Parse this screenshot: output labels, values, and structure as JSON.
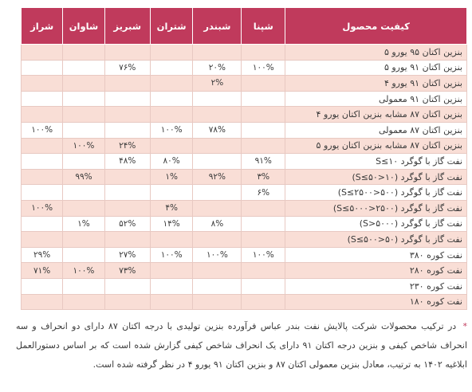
{
  "table": {
    "headers": [
      "کیفیت محصول",
      "شپنا",
      "شبندر",
      "شتران",
      "شبریز",
      "شاوان",
      "شراز"
    ],
    "rows": [
      {
        "label": "بنزین اکتان ۹۵ یورو ۵",
        "values": [
          "",
          "",
          "",
          "",
          "",
          ""
        ]
      },
      {
        "label": "بنزین اکتان ۹۱ یورو ۵",
        "values": [
          "۱۰۰%",
          "۲۰%",
          "",
          "۷۶%",
          "",
          ""
        ]
      },
      {
        "label": "بنزین اکتان ۹۱ یورو ۴",
        "values": [
          "",
          "۲%",
          "",
          "",
          "",
          ""
        ]
      },
      {
        "label": "بنزین اکتان ۹۱ معمولی",
        "values": [
          "",
          "",
          "",
          "",
          "",
          ""
        ]
      },
      {
        "label": "بنزین اکتان ۸۷ مشابه بنزین اکتان یورو ۴",
        "values": [
          "",
          "",
          "",
          "",
          "",
          ""
        ]
      },
      {
        "label": "بنزین اکتان ۸۷ معمولی",
        "values": [
          "",
          "۷۸%",
          "۱۰۰%",
          "",
          "",
          "۱۰۰%"
        ]
      },
      {
        "label": "بنزین اکتان ۸۷ مشابه بنزین اکتان یورو ۵",
        "values": [
          "",
          "",
          "",
          "۲۴%",
          "۱۰۰%",
          ""
        ]
      },
      {
        "label": "نفت گاز با گوگرد S≤۱۰",
        "values": [
          "۹۱%",
          "",
          "۸۰%",
          "۴۸%",
          "",
          ""
        ]
      },
      {
        "label": "نفت گاز با گوگرد (۱۰<S≤۵۰)",
        "values": [
          "۳%",
          "۹۲%",
          "۱%",
          "",
          "۹۹%",
          ""
        ]
      },
      {
        "label": "نفت گاز با گوگرد (۵۰۰<S≤۲۵۰۰)",
        "values": [
          "۶%",
          "",
          "",
          "",
          "",
          ""
        ]
      },
      {
        "label": "نفت گاز با گوگرد (۲۵۰۰<S≤۵۰۰۰)",
        "values": [
          "",
          "",
          "۴%",
          "",
          "",
          "۱۰۰%"
        ]
      },
      {
        "label": "نفت گاز با گوگرد (S>۵۰۰۰)",
        "values": [
          "",
          "۸%",
          "۱۴%",
          "۵۲%",
          "۱%",
          ""
        ]
      },
      {
        "label": "نفت گاز با گوگرد (۵۰<S≤۵۰۰)",
        "values": [
          "",
          "",
          "",
          "",
          "",
          ""
        ]
      },
      {
        "label": "نفت کوره ۳۸۰",
        "values": [
          "۱۰۰%",
          "۱۰۰%",
          "۱۰۰%",
          "۲۷%",
          "",
          "۲۹%"
        ]
      },
      {
        "label": "نفت کوره ۲۸۰",
        "values": [
          "",
          "",
          "",
          "۷۳%",
          "۱۰۰%",
          "۷۱%"
        ]
      },
      {
        "label": "نفت کوره ۲۳۰",
        "values": [
          "",
          "",
          "",
          "",
          "",
          ""
        ]
      },
      {
        "label": "نفت کوره ۱۸۰",
        "values": [
          "",
          "",
          "",
          "",
          "",
          ""
        ]
      }
    ]
  },
  "footnote": {
    "marker": "*",
    "text": "در ترکیب محصولات شرکت پالایش نفت بندر عباس فرآورده بنزین تولیدی با درجه اکتان ۸۷ دارای دو انحراف و سه انحراف شاخص کیفی و بنزین درجه اکتان ۹۱ دارای یک انحراف شاخص کیفی گزارش شده است که بر اساس دستورالعمل ابلاغیه ۱۴۰۲ به ترتیب، معادل بنزین معمولی اکتان ۸۷ و بنزین اکتان ۹۱ یورو ۴ در نظر گرفته شده است."
  },
  "colors": {
    "header_bg": "#c03a5c",
    "row_shade": "#f9ded6",
    "border": "#e8c9c2"
  }
}
